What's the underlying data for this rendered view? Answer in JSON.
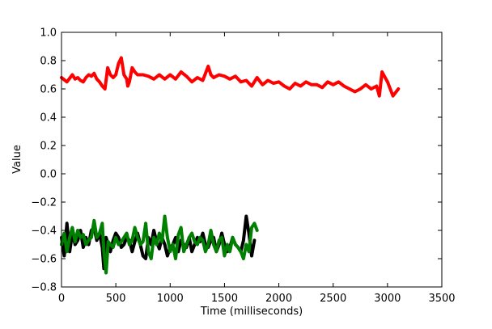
{
  "chart_data": {
    "type": "line",
    "title": "",
    "xlabel": "Time (milliseconds)",
    "ylabel": "Value",
    "xlim": [
      0,
      3500
    ],
    "ylim": [
      -0.8,
      1.0
    ],
    "xticks": [
      0,
      500,
      1000,
      1500,
      2000,
      2500,
      3000,
      3500
    ],
    "yticks": [
      -0.8,
      -0.6,
      -0.4,
      -0.2,
      0.0,
      0.2,
      0.4,
      0.6,
      0.8,
      1.0
    ],
    "xtick_labels": [
      "0",
      "500",
      "1000",
      "1500",
      "2000",
      "2500",
      "3000",
      "3500"
    ],
    "ytick_labels": [
      "−0.8",
      "−0.6",
      "−0.4",
      "−0.2",
      "0.0",
      "0.2",
      "0.4",
      "0.6",
      "0.8",
      "1.0"
    ],
    "grid": false,
    "legend": "none",
    "series": [
      {
        "color": "#000000",
        "x": [
          0,
          25,
          50,
          75,
          100,
          125,
          150,
          175,
          200,
          225,
          250,
          275,
          300,
          325,
          350,
          375,
          390,
          410,
          430,
          450,
          475,
          500,
          525,
          550,
          575,
          600,
          625,
          650,
          675,
          700,
          725,
          750,
          775,
          800,
          825,
          850,
          875,
          900,
          925,
          950,
          975,
          1000,
          1025,
          1050,
          1075,
          1100,
          1125,
          1150,
          1175,
          1200,
          1225,
          1250,
          1275,
          1300,
          1325,
          1350,
          1375,
          1400,
          1425,
          1450,
          1475,
          1500,
          1525,
          1550,
          1575,
          1600,
          1625,
          1650,
          1675,
          1700,
          1725,
          1750,
          1775
        ],
        "y": [
          -0.45,
          -0.58,
          -0.35,
          -0.55,
          -0.42,
          -0.5,
          -0.47,
          -0.4,
          -0.52,
          -0.45,
          -0.5,
          -0.4,
          -0.38,
          -0.47,
          -0.42,
          -0.52,
          -0.67,
          -0.45,
          -0.5,
          -0.55,
          -0.47,
          -0.42,
          -0.45,
          -0.52,
          -0.5,
          -0.45,
          -0.47,
          -0.55,
          -0.48,
          -0.42,
          -0.5,
          -0.58,
          -0.6,
          -0.45,
          -0.5,
          -0.4,
          -0.48,
          -0.53,
          -0.45,
          -0.5,
          -0.58,
          -0.52,
          -0.5,
          -0.45,
          -0.55,
          -0.47,
          -0.5,
          -0.52,
          -0.45,
          -0.55,
          -0.5,
          -0.45,
          -0.48,
          -0.42,
          -0.5,
          -0.52,
          -0.47,
          -0.45,
          -0.55,
          -0.5,
          -0.42,
          -0.5,
          -0.55,
          -0.52,
          -0.45,
          -0.5,
          -0.52,
          -0.55,
          -0.47,
          -0.3,
          -0.42,
          -0.58,
          -0.47
        ]
      },
      {
        "color": "#008000",
        "x": [
          0,
          25,
          50,
          75,
          100,
          125,
          150,
          175,
          200,
          225,
          250,
          275,
          300,
          325,
          350,
          375,
          390,
          410,
          430,
          450,
          475,
          500,
          525,
          550,
          575,
          600,
          625,
          650,
          675,
          700,
          725,
          750,
          775,
          800,
          825,
          850,
          875,
          900,
          925,
          950,
          975,
          1000,
          1025,
          1050,
          1075,
          1100,
          1125,
          1150,
          1175,
          1200,
          1225,
          1250,
          1275,
          1300,
          1325,
          1350,
          1375,
          1400,
          1425,
          1450,
          1475,
          1500,
          1525,
          1550,
          1575,
          1600,
          1625,
          1650,
          1675,
          1700,
          1725,
          1750,
          1775,
          1800
        ],
        "y": [
          -0.5,
          -0.42,
          -0.55,
          -0.45,
          -0.38,
          -0.48,
          -0.4,
          -0.45,
          -0.43,
          -0.5,
          -0.47,
          -0.45,
          -0.33,
          -0.45,
          -0.42,
          -0.35,
          -0.55,
          -0.7,
          -0.48,
          -0.5,
          -0.52,
          -0.45,
          -0.5,
          -0.48,
          -0.45,
          -0.42,
          -0.5,
          -0.47,
          -0.38,
          -0.45,
          -0.5,
          -0.48,
          -0.35,
          -0.55,
          -0.6,
          -0.45,
          -0.5,
          -0.42,
          -0.48,
          -0.3,
          -0.45,
          -0.55,
          -0.5,
          -0.6,
          -0.43,
          -0.38,
          -0.55,
          -0.5,
          -0.45,
          -0.42,
          -0.48,
          -0.5,
          -0.45,
          -0.47,
          -0.55,
          -0.5,
          -0.4,
          -0.5,
          -0.55,
          -0.47,
          -0.45,
          -0.58,
          -0.5,
          -0.55,
          -0.45,
          -0.5,
          -0.52,
          -0.55,
          -0.6,
          -0.5,
          -0.55,
          -0.38,
          -0.35,
          -0.4
        ]
      },
      {
        "color": "#ff0000",
        "x": [
          0,
          50,
          100,
          125,
          150,
          175,
          200,
          225,
          250,
          275,
          300,
          325,
          350,
          375,
          400,
          425,
          450,
          475,
          500,
          525,
          550,
          575,
          600,
          610,
          625,
          650,
          675,
          700,
          750,
          800,
          850,
          900,
          950,
          1000,
          1050,
          1100,
          1150,
          1200,
          1250,
          1300,
          1350,
          1375,
          1400,
          1450,
          1500,
          1550,
          1600,
          1650,
          1700,
          1750,
          1800,
          1850,
          1900,
          1950,
          2000,
          2050,
          2100,
          2150,
          2200,
          2250,
          2300,
          2350,
          2400,
          2450,
          2500,
          2550,
          2600,
          2650,
          2700,
          2750,
          2800,
          2850,
          2900,
          2925,
          2950,
          3000,
          3050,
          3100
        ],
        "y": [
          0.68,
          0.65,
          0.7,
          0.67,
          0.68,
          0.66,
          0.65,
          0.68,
          0.7,
          0.69,
          0.71,
          0.67,
          0.65,
          0.62,
          0.6,
          0.75,
          0.7,
          0.68,
          0.7,
          0.78,
          0.82,
          0.7,
          0.67,
          0.62,
          0.65,
          0.75,
          0.72,
          0.7,
          0.7,
          0.69,
          0.67,
          0.7,
          0.67,
          0.7,
          0.67,
          0.72,
          0.69,
          0.65,
          0.68,
          0.66,
          0.76,
          0.7,
          0.68,
          0.7,
          0.69,
          0.67,
          0.69,
          0.65,
          0.66,
          0.62,
          0.68,
          0.63,
          0.66,
          0.64,
          0.65,
          0.62,
          0.6,
          0.64,
          0.62,
          0.65,
          0.63,
          0.63,
          0.61,
          0.65,
          0.63,
          0.65,
          0.62,
          0.6,
          0.58,
          0.6,
          0.63,
          0.6,
          0.62,
          0.55,
          0.72,
          0.65,
          0.55,
          0.6
        ]
      }
    ]
  }
}
